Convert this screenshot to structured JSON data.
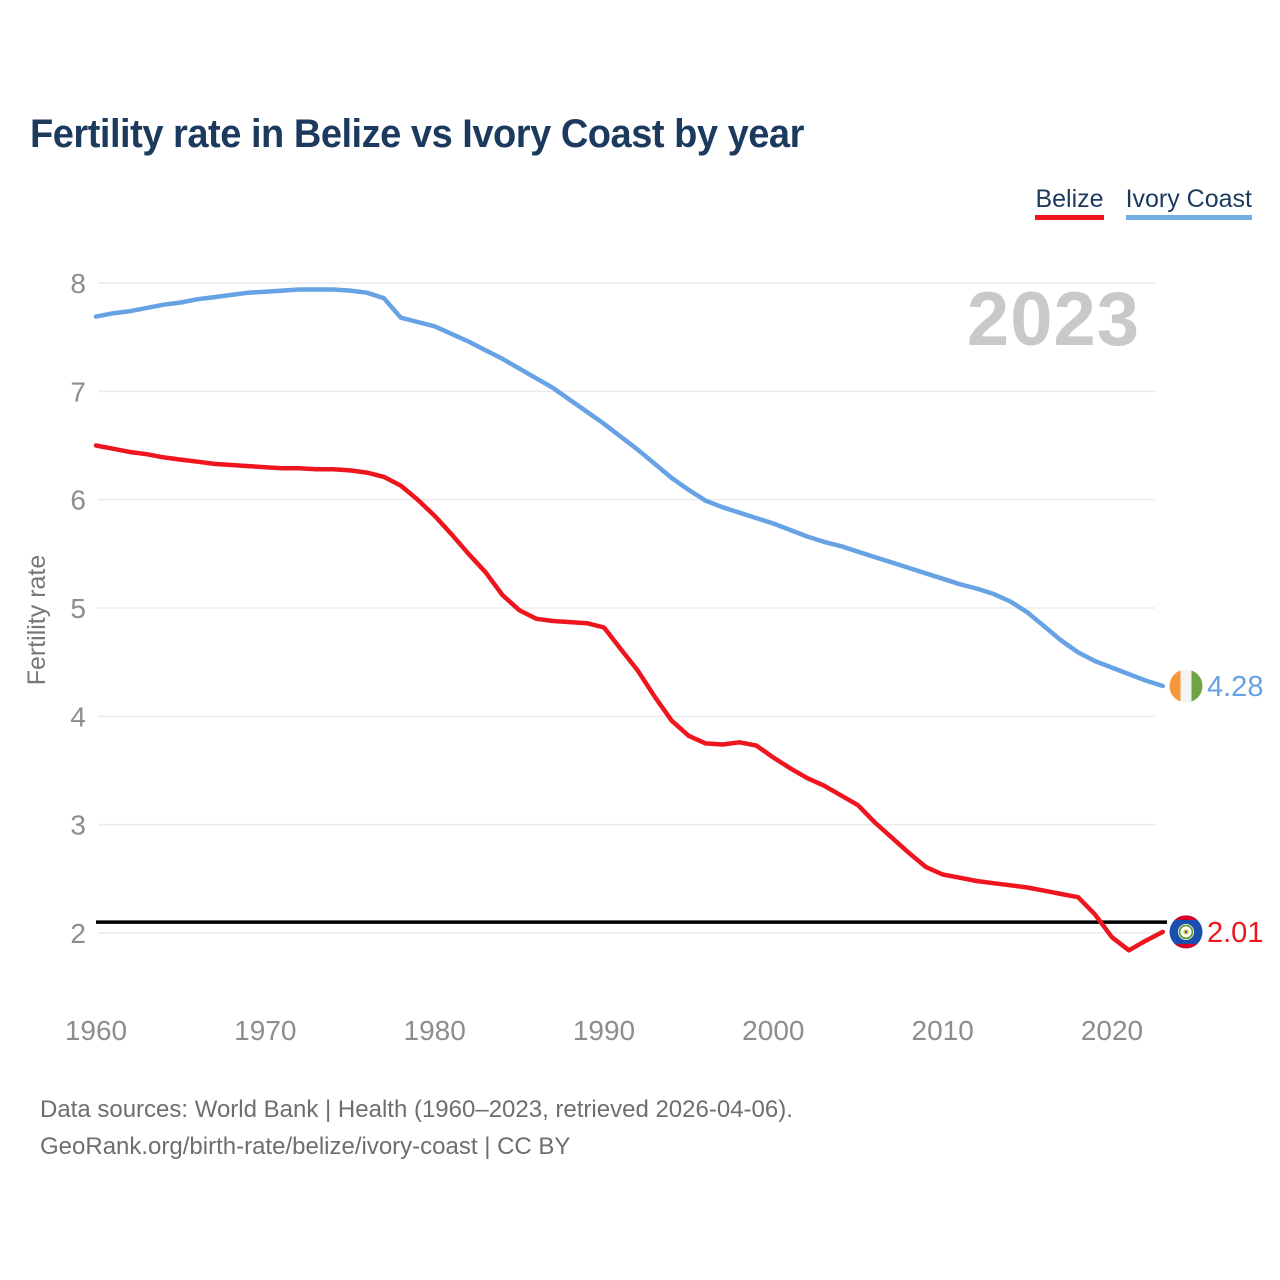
{
  "header": {
    "title": "Fertility rate in Belize vs Ivory Coast by year"
  },
  "legend": {
    "items": [
      {
        "label": "Belize",
        "color": "#ee151e"
      },
      {
        "label": "Ivory Coast",
        "color": "#74aee3"
      }
    ]
  },
  "watermark": "2023",
  "chart_data": {
    "type": "line",
    "title": "Fertility rate in Belize vs Ivory Coast by year",
    "xlabel": "",
    "ylabel": "Fertility rate",
    "ylim": [
      1.6,
      8.3
    ],
    "xlim": [
      1960,
      2023
    ],
    "yticks": [
      2,
      3,
      4,
      5,
      6,
      7,
      8
    ],
    "xticks": [
      1960,
      1970,
      1980,
      1990,
      2000,
      2010,
      2020
    ],
    "grid": true,
    "legend_position": "top-right",
    "reference_line": {
      "value": 2.1,
      "color": "#000000"
    },
    "x": [
      1960,
      1961,
      1962,
      1963,
      1964,
      1965,
      1966,
      1967,
      1968,
      1969,
      1970,
      1971,
      1972,
      1973,
      1974,
      1975,
      1976,
      1977,
      1978,
      1979,
      1980,
      1981,
      1982,
      1983,
      1984,
      1985,
      1986,
      1987,
      1988,
      1989,
      1990,
      1991,
      1992,
      1993,
      1994,
      1995,
      1996,
      1997,
      1998,
      1999,
      2000,
      2001,
      2002,
      2003,
      2004,
      2005,
      2006,
      2007,
      2008,
      2009,
      2010,
      2011,
      2012,
      2013,
      2014,
      2015,
      2016,
      2017,
      2018,
      2019,
      2020,
      2021,
      2022,
      2023
    ],
    "series": [
      {
        "name": "Belize",
        "color": "#ee151e",
        "end_label": "2.01",
        "flag": "belize",
        "values": [
          6.5,
          6.47,
          6.44,
          6.42,
          6.39,
          6.37,
          6.35,
          6.33,
          6.32,
          6.31,
          6.3,
          6.29,
          6.29,
          6.28,
          6.28,
          6.27,
          6.25,
          6.21,
          6.13,
          6.0,
          5.85,
          5.68,
          5.5,
          5.33,
          5.12,
          4.98,
          4.9,
          4.88,
          4.87,
          4.86,
          4.82,
          4.62,
          4.42,
          4.18,
          3.96,
          3.82,
          3.75,
          3.74,
          3.76,
          3.73,
          3.62,
          3.52,
          3.43,
          3.36,
          3.27,
          3.18,
          3.02,
          2.88,
          2.74,
          2.61,
          2.54,
          2.51,
          2.48,
          2.46,
          2.44,
          2.42,
          2.39,
          2.36,
          2.33,
          2.17,
          1.96,
          1.84,
          1.93,
          2.01
        ]
      },
      {
        "name": "Ivory Coast",
        "color": "#67a2e4",
        "end_label": "4.28",
        "flag": "ivory-coast",
        "values": [
          7.69,
          7.72,
          7.74,
          7.77,
          7.8,
          7.82,
          7.85,
          7.87,
          7.89,
          7.91,
          7.92,
          7.93,
          7.94,
          7.94,
          7.94,
          7.93,
          7.91,
          7.86,
          7.68,
          7.64,
          7.6,
          7.53,
          7.46,
          7.38,
          7.3,
          7.21,
          7.12,
          7.03,
          6.92,
          6.81,
          6.7,
          6.58,
          6.46,
          6.33,
          6.2,
          6.09,
          5.99,
          5.93,
          5.88,
          5.83,
          5.78,
          5.72,
          5.66,
          5.61,
          5.57,
          5.52,
          5.47,
          5.42,
          5.37,
          5.32,
          5.27,
          5.22,
          5.18,
          5.13,
          5.06,
          4.96,
          4.83,
          4.7,
          4.59,
          4.51,
          4.45,
          4.39,
          4.33,
          4.28
        ]
      }
    ]
  },
  "footer": {
    "line1": "Data sources: World Bank | Health (1960–2023, retrieved 2026-04-06).",
    "line2": "GeoRank.org/birth-rate/belize/ivory-coast | CC BY"
  }
}
